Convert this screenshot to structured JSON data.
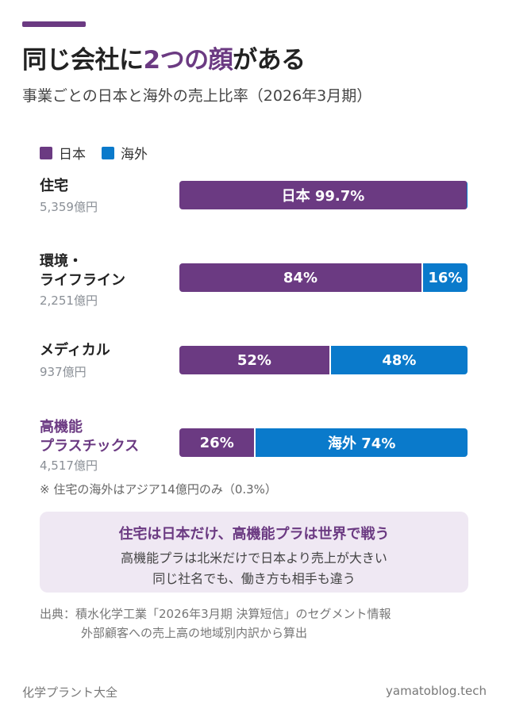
{
  "header": {
    "title_pre": "同じ会社に",
    "title_hl": "2つの顔",
    "title_post": "がある",
    "subtitle": "事業ごとの日本と海外の売上比率（2026年3月期）"
  },
  "colors": {
    "japan": "#6b3a82",
    "overseas": "#0a7acb",
    "accent": "#6b3a82"
  },
  "chart_data": {
    "type": "bar",
    "orientation": "horizontal",
    "stacked": true,
    "normalized_percent": true,
    "legend_position": "top-left",
    "legend": [
      "日本",
      "海外"
    ],
    "categories": [
      "住宅",
      "環境・ライフライン",
      "メディカル",
      "高機能プラスチックス"
    ],
    "sales_labels": [
      "5,359億円",
      "2,251億円",
      "937億円",
      "4,517億円"
    ],
    "series": [
      {
        "name": "日本",
        "values": [
          99.7,
          84,
          52,
          26
        ],
        "labels": [
          "日本 99.7%",
          "84%",
          "52%",
          "26%"
        ]
      },
      {
        "name": "海外",
        "values": [
          0.3,
          16,
          48,
          74
        ],
        "labels": [
          "",
          "16%",
          "48%",
          "海外 74%"
        ]
      }
    ],
    "xlim": [
      0,
      100
    ]
  },
  "rows": [
    {
      "label_lines": [
        "住宅"
      ],
      "highlight": false
    },
    {
      "label_lines": [
        "環境・",
        "ライフライン"
      ],
      "highlight": false
    },
    {
      "label_lines": [
        "メディカル"
      ],
      "highlight": false
    },
    {
      "label_lines": [
        "高機能",
        "プラスチックス"
      ],
      "highlight": true
    }
  ],
  "note": "※ 住宅の海外はアジア14億円のみ（0.3%）",
  "callout": {
    "title": "住宅は日本だけ、高機能プラは世界で戦う",
    "line1": "高機能プラは北米だけで日本より売上が大きい",
    "line2": "同じ社名でも、働き方も相手も違う"
  },
  "source": {
    "line1": "出典：積水化学工業「2026年3月期 決算短信」のセグメント情報",
    "line2": "外部顧客への売上高の地域別内訳から算出"
  },
  "footer": {
    "left": "化学プラント大全",
    "right": "yamatoblog.tech"
  }
}
